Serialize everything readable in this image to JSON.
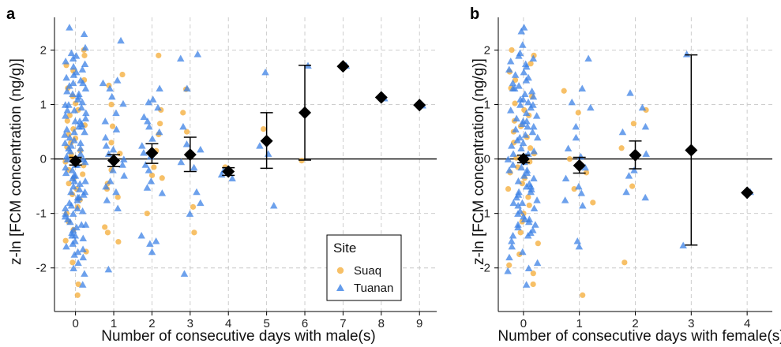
{
  "colors": {
    "suaq": "#F5B041",
    "tuanan": "#3C82E6",
    "mean": "#000000",
    "grid": "#c8c8c8"
  },
  "legend": {
    "title": "Site",
    "items": [
      {
        "label": "Suaq",
        "shape": "circle"
      },
      {
        "label": "Tuanan",
        "shape": "triangle"
      }
    ]
  },
  "chart_data": [
    {
      "type": "scatter",
      "panel_label": "a",
      "xlabel": "Number of consecutive days with male(s)",
      "ylabel": "z-ln [FCM concentration (ng/g)]",
      "x_ticks": [
        0,
        1,
        2,
        3,
        4,
        5,
        6,
        7,
        8,
        9
      ],
      "y_ticks": [
        -2,
        -1,
        0,
        1,
        2
      ],
      "xlim": [
        -0.55,
        9.45
      ],
      "ylim": [
        -2.8,
        2.6
      ],
      "reference_line_y": 0,
      "grid": true,
      "legend_position": "bottom-right",
      "means": [
        {
          "x": 0,
          "y": -0.04,
          "lo": -0.11,
          "hi": 0.03
        },
        {
          "x": 1,
          "y": -0.03,
          "lo": -0.14,
          "hi": 0.08
        },
        {
          "x": 2,
          "y": 0.11,
          "lo": -0.08,
          "hi": 0.28
        },
        {
          "x": 3,
          "y": 0.08,
          "lo": -0.23,
          "hi": 0.4
        },
        {
          "x": 4,
          "y": -0.23,
          "lo": -0.3,
          "hi": -0.16
        },
        {
          "x": 5,
          "y": 0.33,
          "lo": -0.17,
          "hi": 0.85
        },
        {
          "x": 6,
          "y": 0.85,
          "lo": -0.02,
          "hi": 1.72
        },
        {
          "x": 7,
          "y": 1.7
        },
        {
          "x": 8,
          "y": 1.13
        },
        {
          "x": 9,
          "y": 0.99
        }
      ],
      "series": [
        {
          "name": "Suaq",
          "groups": [
            {
              "x": 0,
              "values": [
                2.0,
                1.9,
                1.72,
                1.62,
                1.45,
                1.3,
                1.15,
                1.02,
                0.9,
                0.8,
                0.7,
                0.62,
                0.55,
                0.45,
                0.38,
                0.3,
                0.22,
                0.15,
                0.08,
                0.02,
                -0.05,
                -0.12,
                -0.2,
                -0.28,
                -0.35,
                -0.45,
                -0.55,
                -0.65,
                -0.75,
                -0.88,
                -1.0,
                -1.15,
                -1.3,
                -1.5,
                -1.7,
                -1.9,
                -2.3,
                -2.5
              ]
            },
            {
              "x": 1,
              "values": [
                1.55,
                1.35,
                1.0,
                0.6,
                0.3,
                0.1,
                -0.02,
                -0.2,
                -0.45,
                -0.55,
                -0.7,
                -1.25,
                -1.35,
                -1.52
              ]
            },
            {
              "x": 2,
              "values": [
                1.9,
                0.9,
                0.65,
                0.45,
                0.15,
                -0.15,
                -0.3,
                -0.35,
                -1.0
              ]
            },
            {
              "x": 3,
              "values": [
                1.28,
                0.85,
                0.5,
                -0.88,
                -1.35
              ]
            },
            {
              "x": 4,
              "values": [
                -0.15
              ]
            },
            {
              "x": 5,
              "values": [
                0.55
              ]
            },
            {
              "x": 6,
              "values": [
                -0.03
              ]
            }
          ]
        },
        {
          "name": "Tuanan",
          "groups": [
            {
              "x": 0,
              "values": [
                2.42,
                2.3,
                2.05,
                1.95,
                1.9,
                1.85,
                1.8,
                1.75,
                1.7,
                1.65,
                1.6,
                1.55,
                1.5,
                1.45,
                1.4,
                1.35,
                1.3,
                1.25,
                1.2,
                1.15,
                1.1,
                1.05,
                1.0,
                0.95,
                0.9,
                0.85,
                0.8,
                0.75,
                0.7,
                0.65,
                0.6,
                0.55,
                0.5,
                0.45,
                0.4,
                0.35,
                0.3,
                0.25,
                0.2,
                0.15,
                0.1,
                0.05,
                0.0,
                -0.05,
                -0.1,
                -0.15,
                -0.2,
                -0.25,
                -0.3,
                -0.35,
                -0.4,
                -0.45,
                -0.5,
                -0.55,
                -0.6,
                -0.65,
                -0.7,
                -0.75,
                -0.8,
                -0.85,
                -0.9,
                -0.95,
                -1.0,
                -1.05,
                -1.1,
                -1.15,
                -1.2,
                -1.25,
                -1.3,
                -1.35,
                -1.4,
                -1.45,
                -1.5,
                -1.55,
                -1.6,
                -1.65,
                -1.7,
                -1.75,
                -1.8,
                -1.9,
                -2.0,
                -2.1,
                -2.3,
                1.2,
                0.9,
                0.6,
                0.3,
                0.0,
                -0.3,
                -0.6,
                -0.9,
                -1.2,
                1.4,
                1.0,
                0.5,
                -0.1,
                -0.7,
                -1.4,
                0.7,
                0.2,
                -0.4,
                -1.0
              ]
            },
            {
              "x": 1,
              "values": [
                2.18,
                1.45,
                1.4,
                1.3,
                1.15,
                1.02,
                0.85,
                0.7,
                0.55,
                0.4,
                0.25,
                0.18,
                0.1,
                0.0,
                -0.1,
                -0.2,
                -0.3,
                -0.4,
                -0.5,
                -0.6,
                -0.75,
                -0.9,
                -2.02
              ]
            },
            {
              "x": 2,
              "values": [
                1.3,
                1.1,
                1.05,
                0.95,
                0.78,
                0.7,
                0.6,
                0.5,
                0.38,
                0.25,
                0.12,
                0.05,
                -0.1,
                -0.2,
                -0.4,
                -0.52,
                -0.62,
                -1.4,
                -1.5,
                -1.55,
                -1.7
              ]
            },
            {
              "x": 3,
              "values": [
                1.93,
                1.85,
                1.3,
                0.6,
                0.28,
                0.18,
                -0.05,
                -0.15,
                -0.6,
                -0.8,
                -1.0,
                -2.1
              ]
            },
            {
              "x": 4,
              "values": [
                -0.2,
                -0.28,
                -0.35
              ]
            },
            {
              "x": 5,
              "values": [
                1.6,
                0.25,
                0.1,
                -0.85
              ]
            },
            {
              "x": 6,
              "values": [
                1.72
              ]
            },
            {
              "x": 7,
              "values": [
                1.72
              ]
            },
            {
              "x": 8,
              "values": [
                1.12
              ]
            },
            {
              "x": 9,
              "values": [
                0.99
              ]
            }
          ]
        }
      ]
    },
    {
      "type": "scatter",
      "panel_label": "b",
      "xlabel": "Number of consecutive days with female(s)",
      "ylabel": "z-ln [FCM concentration (ng/g)]",
      "x_ticks": [
        0,
        1,
        2,
        3,
        4
      ],
      "y_ticks": [
        -2,
        -1,
        0,
        1,
        2
      ],
      "xlim": [
        -0.45,
        4.45
      ],
      "ylim": [
        -2.8,
        2.6
      ],
      "reference_line_y": 0,
      "grid": true,
      "means": [
        {
          "x": 0,
          "y": 0.0,
          "lo": -0.07,
          "hi": 0.07
        },
        {
          "x": 1,
          "y": -0.12,
          "lo": -0.26,
          "hi": 0.03
        },
        {
          "x": 2,
          "y": 0.07,
          "lo": -0.18,
          "hi": 0.33
        },
        {
          "x": 3,
          "y": 0.16,
          "lo": -1.58,
          "hi": 1.91
        },
        {
          "x": 4,
          "y": -0.62
        }
      ],
      "series": [
        {
          "name": "Suaq",
          "groups": [
            {
              "x": 0,
              "values": [
                2.0,
                1.9,
                1.75,
                1.6,
                1.45,
                1.3,
                1.15,
                1.02,
                0.9,
                0.8,
                0.7,
                0.6,
                0.5,
                0.4,
                0.3,
                0.2,
                0.1,
                0.02,
                -0.05,
                -0.15,
                -0.25,
                -0.35,
                -0.45,
                -0.55,
                -0.7,
                -0.85,
                -1.0,
                -1.15,
                -1.35,
                -1.55,
                -1.75,
                -1.95,
                -2.1,
                -2.3
              ]
            },
            {
              "x": 1,
              "values": [
                1.25,
                0.85,
                0.0,
                -0.25,
                -0.55,
                -0.8,
                -2.5
              ]
            },
            {
              "x": 2,
              "values": [
                0.9,
                0.65,
                0.2,
                -0.5,
                -1.9
              ]
            }
          ]
        },
        {
          "name": "Tuanan",
          "groups": [
            {
              "x": 0,
              "values": [
                2.42,
                2.35,
                2.1,
                1.95,
                1.9,
                1.85,
                1.8,
                1.75,
                1.7,
                1.65,
                1.6,
                1.55,
                1.5,
                1.45,
                1.4,
                1.35,
                1.3,
                1.25,
                1.2,
                1.15,
                1.1,
                1.05,
                1.0,
                0.95,
                0.9,
                0.85,
                0.8,
                0.75,
                0.7,
                0.65,
                0.6,
                0.55,
                0.5,
                0.45,
                0.4,
                0.35,
                0.3,
                0.25,
                0.2,
                0.15,
                0.1,
                0.05,
                0.0,
                -0.05,
                -0.1,
                -0.15,
                -0.2,
                -0.25,
                -0.3,
                -0.35,
                -0.4,
                -0.45,
                -0.5,
                -0.55,
                -0.6,
                -0.65,
                -0.7,
                -0.75,
                -0.8,
                -0.85,
                -0.9,
                -0.95,
                -1.0,
                -1.05,
                -1.1,
                -1.15,
                -1.2,
                -1.25,
                -1.3,
                -1.35,
                -1.4,
                -1.5,
                -1.6,
                -1.7,
                -1.8,
                -1.9,
                -2.0,
                -2.05,
                -2.3,
                1.3,
                1.0,
                0.7,
                0.4,
                0.1,
                -0.2,
                -0.5,
                -0.8,
                -1.1,
                -1.4,
                1.1,
                0.6,
                0.0,
                -0.6,
                -1.2
              ]
            },
            {
              "x": 1,
              "values": [
                1.85,
                1.3,
                1.05,
                0.95,
                0.6,
                0.4,
                0.2,
                0.05,
                -0.15,
                -0.35,
                -0.5,
                -0.62,
                -0.75,
                -0.85,
                -1.5,
                -1.6
              ]
            },
            {
              "x": 2,
              "values": [
                1.22,
                0.95,
                0.6,
                0.5,
                0.1,
                -0.2,
                -0.3,
                -0.6,
                -0.7
              ]
            },
            {
              "x": 3,
              "values": [
                1.93,
                -1.58
              ]
            },
            {
              "x": 4,
              "values": [
                -0.6
              ]
            }
          ]
        }
      ]
    }
  ]
}
